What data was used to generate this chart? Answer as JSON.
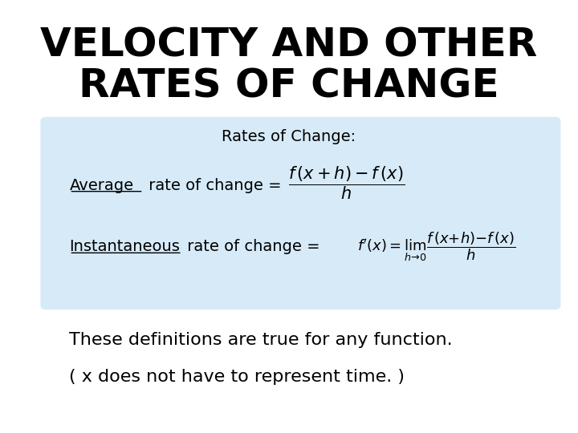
{
  "title_line1": "VELOCITY AND OTHER",
  "title_line2": "RATES OF CHANGE",
  "title_fontsize": 36,
  "title_color": "#000000",
  "box_color": "#d6eaf8",
  "box_label": "Rates of Change:",
  "avg_word": "Average",
  "avg_rest": " rate of change = ",
  "inst_word": "Instantaneous",
  "inst_rest": " rate of change = ",
  "footer1": "These definitions are true for any function.",
  "footer2": "( x does not have to represent time. )",
  "footer_fontsize": 16,
  "background_color": "#ffffff"
}
